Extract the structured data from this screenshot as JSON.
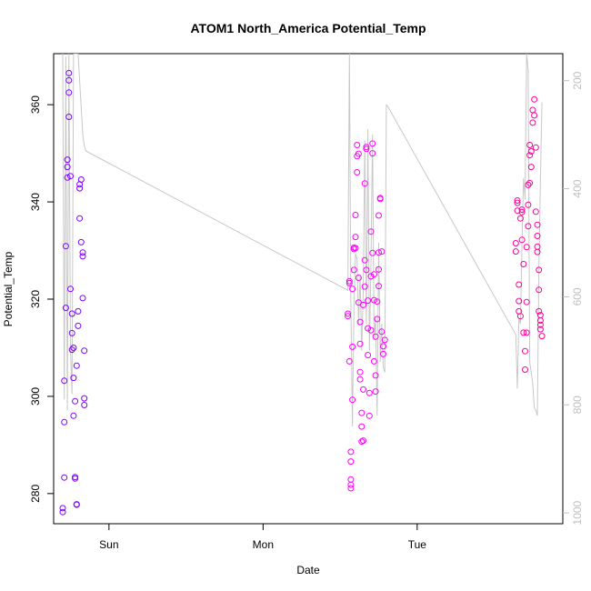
{
  "chart_data": {
    "type": "scatter",
    "title": "ATOM1 North_America Potential_Temp",
    "xlabel": "Date",
    "ylabel": "Potential_Temp",
    "x_ticks": [
      {
        "label": "Sun",
        "value": 1.0
      },
      {
        "label": "Mon",
        "value": 2.0
      },
      {
        "label": "Tue",
        "value": 3.0
      }
    ],
    "xlim": [
      0.641,
      3.945
    ],
    "ylim": [
      273.8,
      370.5
    ],
    "y_ticks": [
      280,
      300,
      320,
      340,
      360
    ],
    "y2_ticks": [
      200,
      400,
      600,
      800,
      1000
    ],
    "y2lim": [
      1020,
      150
    ],
    "series": [
      {
        "color": "#7f00ff",
        "points": [
          [
            0.7,
            276.2
          ],
          [
            0.7,
            277.0
          ],
          [
            0.71,
            283.3
          ],
          [
            0.71,
            294.7
          ],
          [
            0.71,
            303.2
          ],
          [
            0.72,
            318.2
          ],
          [
            0.72,
            330.9
          ],
          [
            0.73,
            345.0
          ],
          [
            0.73,
            347.2
          ],
          [
            0.73,
            348.7
          ],
          [
            0.74,
            357.5
          ],
          [
            0.74,
            362.5
          ],
          [
            0.74,
            365.0
          ],
          [
            0.74,
            366.5
          ],
          [
            0.75,
            345.3
          ],
          [
            0.75,
            322.1
          ],
          [
            0.76,
            317.0
          ],
          [
            0.76,
            313.0
          ],
          [
            0.76,
            309.6
          ],
          [
            0.77,
            310.0
          ],
          [
            0.77,
            303.8
          ],
          [
            0.77,
            296.0
          ],
          [
            0.78,
            299.0
          ],
          [
            0.78,
            283.4
          ],
          [
            0.78,
            283.1
          ],
          [
            0.79,
            277.8
          ],
          [
            0.79,
            277.7
          ],
          [
            0.79,
            306.3
          ],
          [
            0.8,
            314.5
          ],
          [
            0.8,
            317.5
          ],
          [
            0.81,
            336.6
          ],
          [
            0.81,
            342.8
          ],
          [
            0.81,
            343.6
          ],
          [
            0.82,
            344.6
          ],
          [
            0.82,
            331.7
          ],
          [
            0.83,
            329.6
          ],
          [
            0.83,
            328.8
          ],
          [
            0.83,
            320.2
          ],
          [
            0.84,
            309.4
          ],
          [
            0.84,
            299.6
          ],
          [
            0.84,
            298.2
          ]
        ]
      },
      {
        "color": "#ff00ff",
        "points": [
          [
            2.55,
            317.0
          ],
          [
            2.55,
            316.5
          ],
          [
            2.56,
            307.2
          ],
          [
            2.56,
            323.3
          ],
          [
            2.56,
            323.7
          ],
          [
            2.57,
            288.6
          ],
          [
            2.57,
            286.6
          ],
          [
            2.57,
            282.9
          ],
          [
            2.57,
            281.8
          ],
          [
            2.57,
            281.1
          ],
          [
            2.58,
            299.3
          ],
          [
            2.58,
            310.2
          ],
          [
            2.58,
            322.1
          ],
          [
            2.59,
            326.0
          ],
          [
            2.59,
            330.3
          ],
          [
            2.59,
            330.6
          ],
          [
            2.6,
            330.5
          ],
          [
            2.6,
            337.3
          ],
          [
            2.6,
            332.8
          ],
          [
            2.61,
            346.1
          ],
          [
            2.61,
            349.4
          ],
          [
            2.61,
            351.7
          ],
          [
            2.62,
            349.9
          ],
          [
            2.62,
            324.4
          ],
          [
            2.62,
            319.3
          ],
          [
            2.63,
            315.3
          ],
          [
            2.63,
            310.8
          ],
          [
            2.63,
            305.0
          ],
          [
            2.63,
            303.5
          ],
          [
            2.64,
            296.6
          ],
          [
            2.64,
            293.8
          ],
          [
            2.64,
            290.7
          ],
          [
            2.65,
            290.9
          ],
          [
            2.65,
            301.4
          ],
          [
            2.65,
            318.8
          ],
          [
            2.66,
            322.6
          ],
          [
            2.66,
            328.0
          ],
          [
            2.66,
            343.8
          ],
          [
            2.67,
            350.9
          ],
          [
            2.67,
            351.3
          ],
          [
            2.67,
            326.0
          ],
          [
            2.68,
            319.7
          ],
          [
            2.68,
            314.0
          ],
          [
            2.68,
            308.5
          ],
          [
            2.69,
            300.7
          ],
          [
            2.69,
            296.0
          ],
          [
            2.7,
            313.6
          ],
          [
            2.7,
            324.7
          ],
          [
            2.7,
            333.9
          ],
          [
            2.71,
            350.0
          ],
          [
            2.71,
            352.0
          ],
          [
            2.71,
            329.5
          ],
          [
            2.72,
            325.1
          ],
          [
            2.72,
            319.8
          ],
          [
            2.72,
            307.2
          ],
          [
            2.73,
            304.3
          ],
          [
            2.73,
            301.0
          ],
          [
            2.73,
            312.3
          ],
          [
            2.74,
            315.9
          ],
          [
            2.74,
            319.5
          ],
          [
            2.75,
            322.7
          ],
          [
            2.75,
            326.1
          ],
          [
            2.75,
            329.6
          ],
          [
            2.75,
            337.2
          ],
          [
            2.76,
            340.8
          ],
          [
            2.76,
            340.6
          ],
          [
            2.77,
            329.8
          ],
          [
            2.77,
            313.3
          ],
          [
            2.78,
            310.3
          ],
          [
            2.78,
            308.7
          ],
          [
            2.79,
            311.6
          ]
        ]
      },
      {
        "color": "#ff0099",
        "points": [
          [
            3.64,
            329.8
          ],
          [
            3.64,
            331.5
          ],
          [
            3.65,
            339.8
          ],
          [
            3.65,
            340.3
          ],
          [
            3.65,
            338.2
          ],
          [
            3.66,
            323.0
          ],
          [
            3.66,
            319.6
          ],
          [
            3.66,
            317.5
          ],
          [
            3.67,
            316.5
          ],
          [
            3.67,
            336.6
          ],
          [
            3.68,
            337.9
          ],
          [
            3.68,
            338.4
          ],
          [
            3.68,
            332.2
          ],
          [
            3.69,
            327.2
          ],
          [
            3.69,
            313.1
          ],
          [
            3.7,
            309.3
          ],
          [
            3.7,
            305.5
          ],
          [
            3.71,
            313.1
          ],
          [
            3.71,
            319.4
          ],
          [
            3.71,
            330.7
          ],
          [
            3.72,
            335.0
          ],
          [
            3.72,
            339.4
          ],
          [
            3.72,
            343.5
          ],
          [
            3.73,
            343.9
          ],
          [
            3.73,
            349.6
          ],
          [
            3.73,
            351.7
          ],
          [
            3.74,
            347.2
          ],
          [
            3.74,
            350.4
          ],
          [
            3.75,
            356.3
          ],
          [
            3.75,
            358.9
          ],
          [
            3.76,
            361.1
          ],
          [
            3.76,
            357.8
          ],
          [
            3.77,
            351.2
          ],
          [
            3.77,
            338.0
          ],
          [
            3.78,
            335.3
          ],
          [
            3.78,
            333.0
          ],
          [
            3.78,
            330.8
          ],
          [
            3.78,
            329.7
          ],
          [
            3.79,
            326.0
          ],
          [
            3.79,
            321.9
          ],
          [
            3.79,
            317.5
          ],
          [
            3.8,
            316.7
          ],
          [
            3.8,
            315.6
          ],
          [
            3.8,
            314.7
          ],
          [
            3.8,
            313.8
          ],
          [
            3.81,
            312.4
          ]
        ]
      }
    ],
    "pressure_line": {
      "color": "#c8c8c8",
      "points": [
        [
          0.7,
          150
        ],
        [
          0.71,
          790
        ],
        [
          0.72,
          155
        ],
        [
          0.73,
          810
        ],
        [
          0.74,
          150
        ],
        [
          0.75,
          700
        ],
        [
          0.76,
          780
        ],
        [
          0.77,
          150
        ],
        [
          0.8,
          150
        ],
        [
          0.81,
          200
        ],
        [
          0.82,
          250
        ],
        [
          0.83,
          300
        ],
        [
          0.84,
          320
        ],
        [
          0.85,
          330
        ],
        [
          2.55,
          588
        ],
        [
          2.56,
          150
        ],
        [
          2.57,
          610
        ],
        [
          2.58,
          840
        ],
        [
          2.59,
          620
        ],
        [
          2.6,
          520
        ],
        [
          2.61,
          530
        ],
        [
          2.62,
          650
        ],
        [
          2.63,
          560
        ],
        [
          2.64,
          700
        ],
        [
          2.65,
          590
        ],
        [
          2.66,
          310
        ],
        [
          2.67,
          650
        ],
        [
          2.68,
          290
        ],
        [
          2.69,
          700
        ],
        [
          2.7,
          540
        ],
        [
          2.71,
          300
        ],
        [
          2.72,
          680
        ],
        [
          2.73,
          640
        ],
        [
          2.74,
          820
        ],
        [
          2.75,
          500
        ],
        [
          2.76,
          720
        ],
        [
          2.77,
          650
        ],
        [
          2.78,
          730
        ],
        [
          2.79,
          740
        ],
        [
          2.8,
          245
        ],
        [
          2.81,
          248
        ],
        [
          3.64,
          670
        ],
        [
          3.65,
          770
        ],
        [
          3.66,
          640
        ],
        [
          3.67,
          650
        ],
        [
          3.68,
          500
        ],
        [
          3.69,
          380
        ],
        [
          3.7,
          420
        ],
        [
          3.71,
          150
        ],
        [
          3.72,
          180
        ],
        [
          3.73,
          720
        ],
        [
          3.75,
          760
        ],
        [
          3.76,
          805
        ],
        [
          3.77,
          810
        ],
        [
          3.78,
          820
        ],
        [
          3.79,
          550
        ],
        [
          3.8,
          380
        ],
        [
          3.81,
          240
        ]
      ]
    }
  }
}
